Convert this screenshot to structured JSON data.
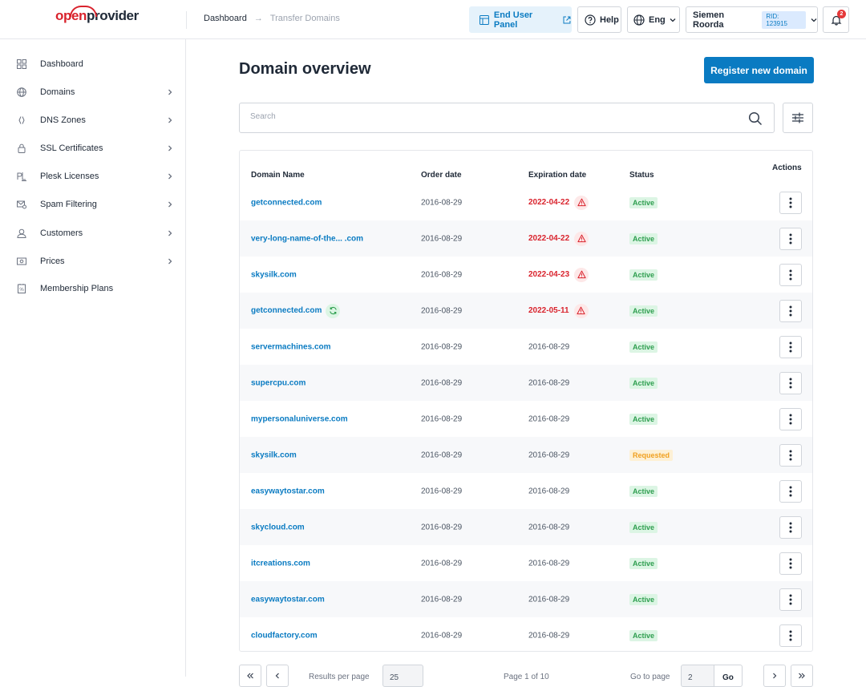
{
  "brand": {
    "part1": "open",
    "part2": "provider"
  },
  "breadcrumb": {
    "items": [
      "Dashboard",
      "Transfer Domains"
    ],
    "separator": "→"
  },
  "header": {
    "end_user_panel": "End User Panel",
    "help": "Help",
    "language": "Eng",
    "user_name": "Siemen Roorda",
    "rid": "RID: 123915",
    "notifications": "2"
  },
  "sidebar": {
    "items": [
      {
        "label": "Dashboard",
        "icon": "dashboard-grid-icon",
        "has_chevron": false
      },
      {
        "label": "Domains",
        "icon": "globe-icon",
        "has_chevron": true
      },
      {
        "label": "DNS Zones",
        "icon": "dns-icon",
        "has_chevron": true
      },
      {
        "label": "SSL Certificates",
        "icon": "lock-icon",
        "has_chevron": true
      },
      {
        "label": "Plesk Licenses",
        "icon": "plesk-icon",
        "has_chevron": true
      },
      {
        "label": "Spam Filtering",
        "icon": "mail-filter-icon",
        "has_chevron": true
      },
      {
        "label": "Customers",
        "icon": "user-icon",
        "has_chevron": true
      },
      {
        "label": "Prices",
        "icon": "price-tag-icon",
        "has_chevron": true
      },
      {
        "label": "Membership Plans",
        "icon": "membership-icon",
        "has_chevron": false
      }
    ]
  },
  "main": {
    "title": "Domain overview",
    "register_button": "Register new domain",
    "search_placeholder": "Search"
  },
  "table": {
    "headers": {
      "domain": "Domain Name",
      "order": "Order date",
      "expiration": "Expiration date",
      "status": "Status",
      "actions": "Actions"
    },
    "rows": [
      {
        "domain": "getconnected.com",
        "order": "2016-08-29",
        "expiration": "2022-04-22",
        "expired": true,
        "sync": false,
        "status": "Active"
      },
      {
        "domain": "very-long-name-of-the... .com",
        "order": "2016-08-29",
        "expiration": "2022-04-22",
        "expired": true,
        "sync": false,
        "status": "Active"
      },
      {
        "domain": "skysilk.com",
        "order": "2016-08-29",
        "expiration": "2022-04-23",
        "expired": true,
        "sync": false,
        "status": "Active"
      },
      {
        "domain": "getconnected.com",
        "order": "2016-08-29",
        "expiration": "2022-05-11",
        "expired": true,
        "sync": true,
        "status": "Active"
      },
      {
        "domain": "servermachines.com",
        "order": "2016-08-29",
        "expiration": "2016-08-29",
        "expired": false,
        "sync": false,
        "status": "Active"
      },
      {
        "domain": "supercpu.com",
        "order": "2016-08-29",
        "expiration": "2016-08-29",
        "expired": false,
        "sync": false,
        "status": "Active"
      },
      {
        "domain": "mypersonaluniverse.com",
        "order": "2016-08-29",
        "expiration": "2016-08-29",
        "expired": false,
        "sync": false,
        "status": "Active"
      },
      {
        "domain": "skysilk.com",
        "order": "2016-08-29",
        "expiration": "2016-08-29",
        "expired": false,
        "sync": false,
        "status": "Requested"
      },
      {
        "domain": "easywaytostar.com",
        "order": "2016-08-29",
        "expiration": "2016-08-29",
        "expired": false,
        "sync": false,
        "status": "Active"
      },
      {
        "domain": "skycloud.com",
        "order": "2016-08-29",
        "expiration": "2016-08-29",
        "expired": false,
        "sync": false,
        "status": "Active"
      },
      {
        "domain": "itcreations.com",
        "order": "2016-08-29",
        "expiration": "2016-08-29",
        "expired": false,
        "sync": false,
        "status": "Active"
      },
      {
        "domain": "easywaytostar.com",
        "order": "2016-08-29",
        "expiration": "2016-08-29",
        "expired": false,
        "sync": false,
        "status": "Active"
      },
      {
        "domain": "cloudfactory.com",
        "order": "2016-08-29",
        "expiration": "2016-08-29",
        "expired": false,
        "sync": false,
        "status": "Active"
      }
    ]
  },
  "pagination": {
    "results_per_page_label": "Results per page",
    "results_per_page_value": "25",
    "page_info": "Page 1 of 10",
    "go_to_page_label": "Go to page",
    "go_to_page_value": "2",
    "go_button": "Go"
  },
  "colors": {
    "accent": "#0a7bc2",
    "brand_red": "#d9232d",
    "active": "#2e9e4f",
    "requested": "#f0a020"
  }
}
